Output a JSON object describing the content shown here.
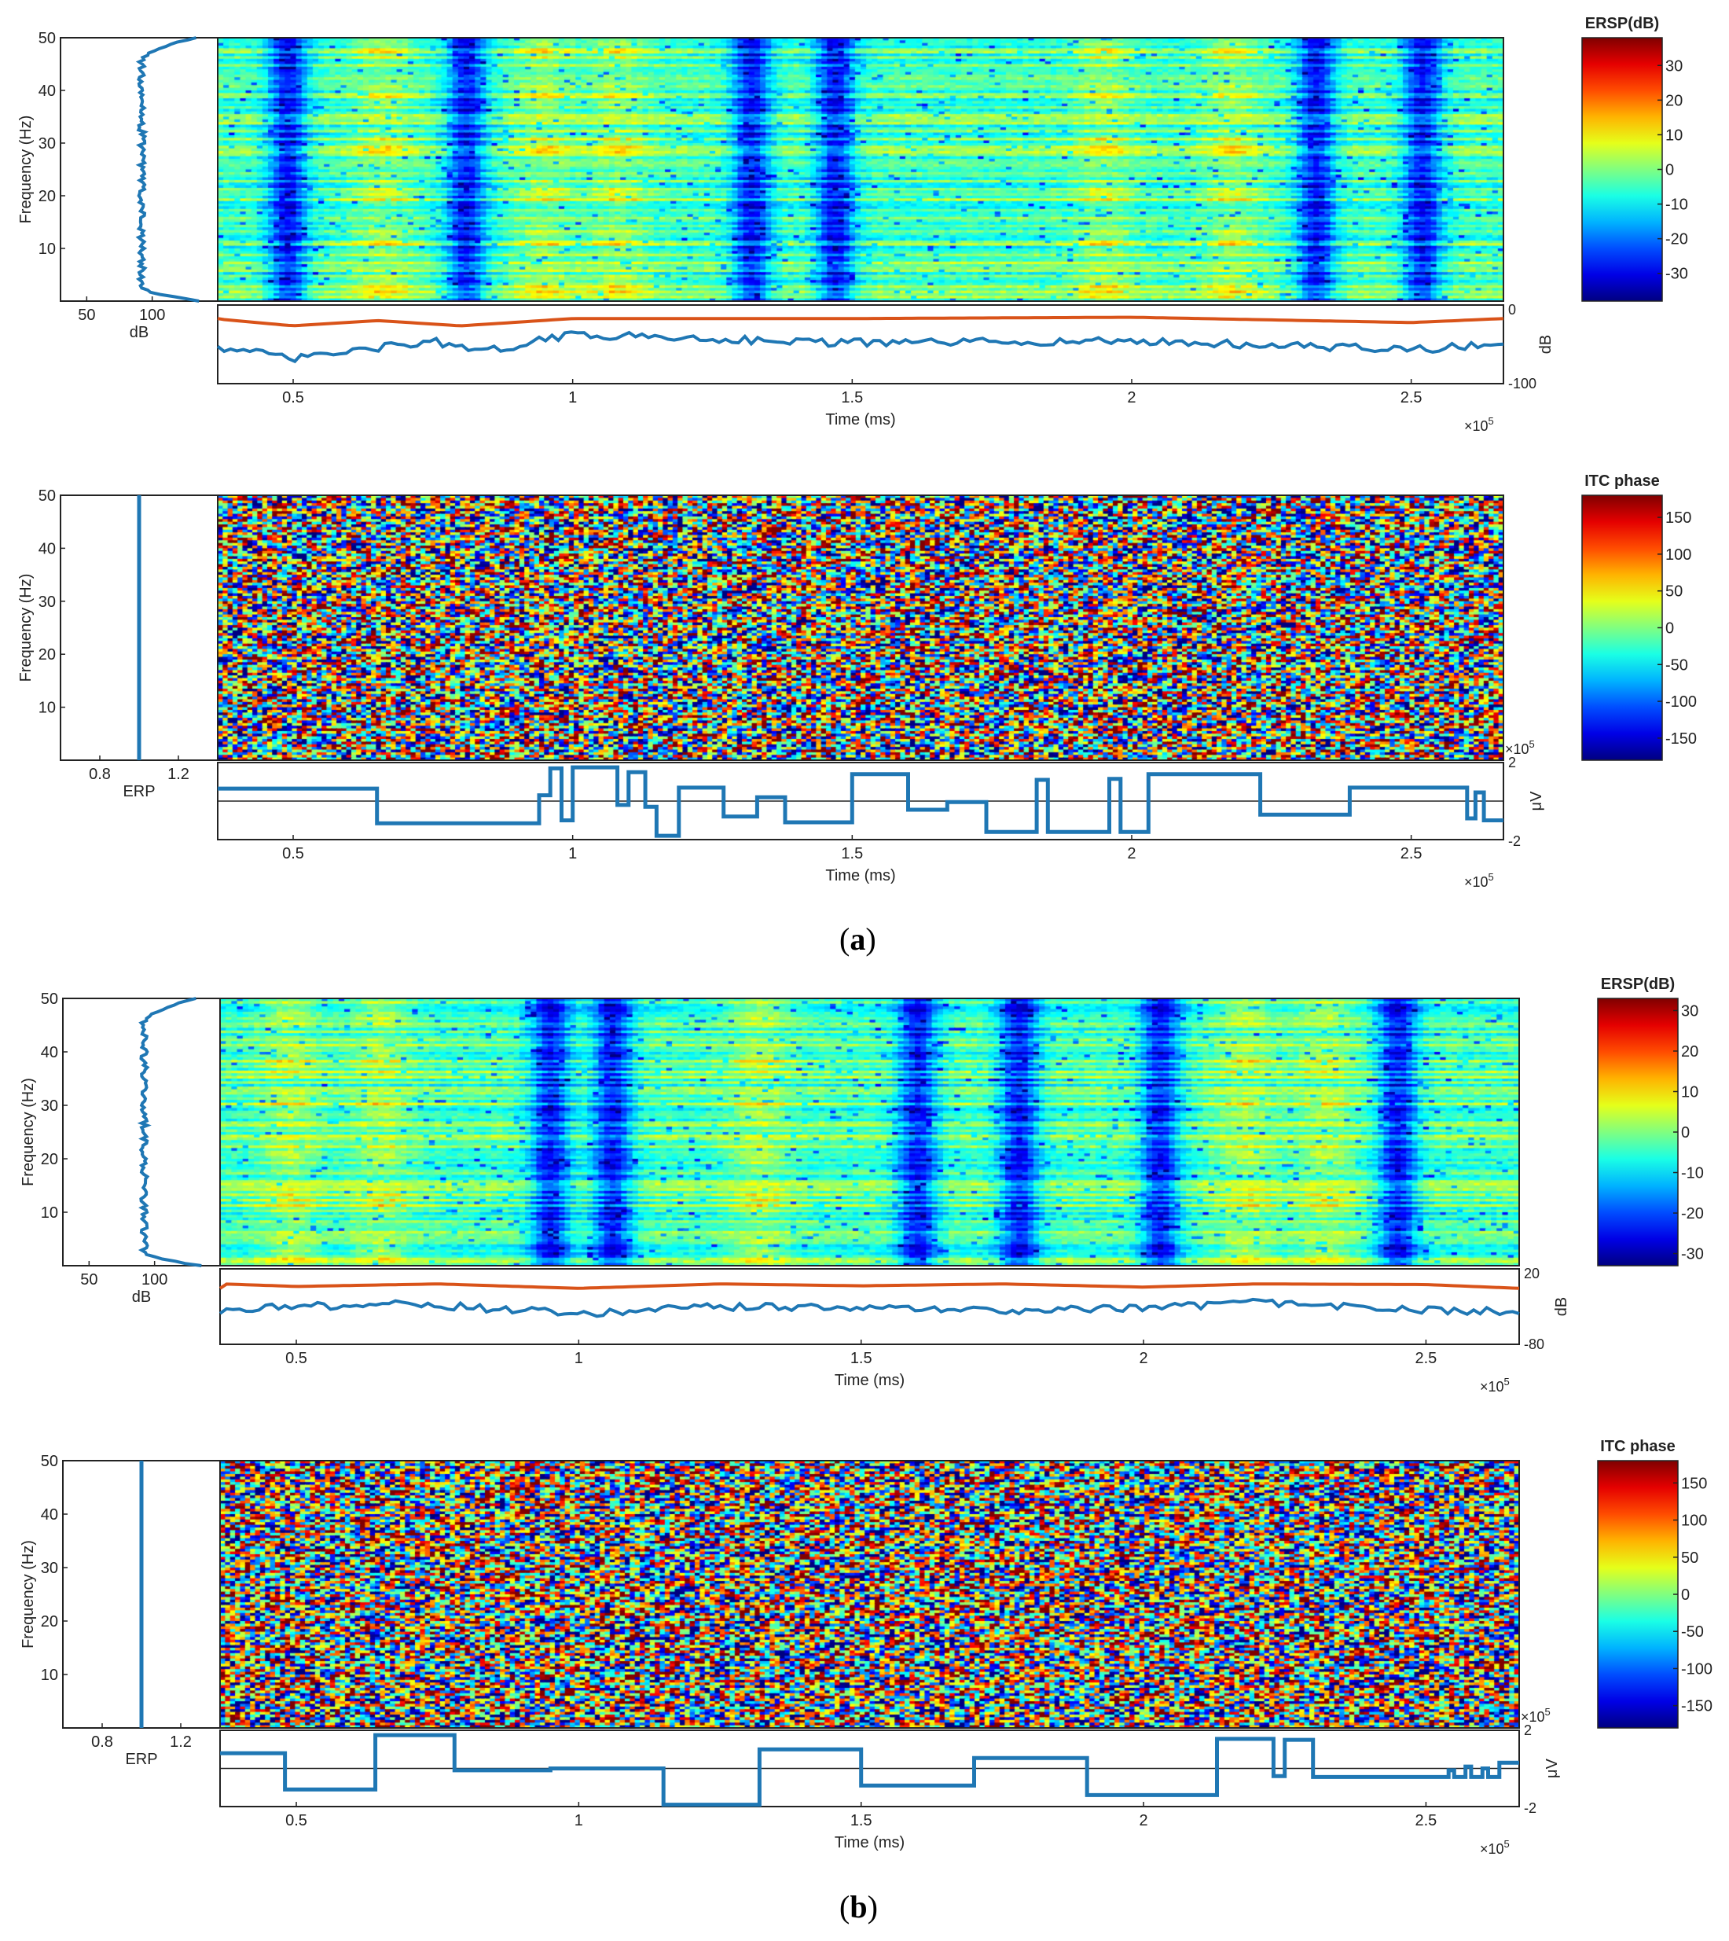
{
  "figure": {
    "caption_a": "a",
    "caption_b": "b"
  },
  "chart_data": [
    {
      "panel": "a",
      "type": "heatmap",
      "name": "ERSP",
      "ylabel": "Frequency (Hz)",
      "yticks": [
        10,
        20,
        30,
        40,
        50
      ],
      "ylim": [
        0,
        50
      ],
      "colorbar": {
        "title": "ERSP(dB)",
        "ticks": [
          30,
          20,
          10,
          0,
          -10,
          -20,
          -30
        ],
        "lim": [
          -38,
          38
        ]
      },
      "low_sweeps": [
        0.49,
        0.81,
        1.32,
        1.47,
        2.33,
        2.52
      ],
      "high_sweeps": [
        0.66,
        0.95,
        1.08,
        1.95,
        2.18
      ],
      "marginal": {
        "xlabel": "dB",
        "xticks": [
          50,
          100
        ],
        "xlim": [
          30,
          150
        ],
        "profile_value": 92
      },
      "trace": {
        "xlabel": "Time (ms)",
        "xticks": [
          0.5,
          1,
          1.5,
          2,
          2.5
        ],
        "xlim": [
          0.365,
          2.665
        ],
        "x_exponent": "×10",
        "ylabel": "dB",
        "yticks_labels": [
          "0",
          "-100"
        ],
        "ylim": [
          -100,
          0
        ],
        "red": [
          [
            0.37,
            -12
          ],
          [
            0.5,
            -22
          ],
          [
            0.65,
            -14
          ],
          [
            0.8,
            -22
          ],
          [
            1,
            -11
          ],
          [
            1.5,
            -11
          ],
          [
            2,
            -9
          ],
          [
            2.5,
            -17
          ],
          [
            2.665,
            -11
          ]
        ],
        "blue": [
          [
            0.37,
            -55
          ],
          [
            0.5,
            -72
          ],
          [
            0.75,
            -45
          ],
          [
            0.83,
            -63
          ],
          [
            1,
            -35
          ],
          [
            1.5,
            -48
          ],
          [
            2,
            -45
          ],
          [
            2.5,
            -58
          ],
          [
            2.665,
            -50
          ]
        ]
      }
    },
    {
      "panel": "a",
      "type": "heatmap",
      "name": "ITC phase",
      "ylabel": "Frequency (Hz)",
      "yticks": [
        10,
        20,
        30,
        40,
        50
      ],
      "ylim": [
        0,
        50
      ],
      "colorbar": {
        "title": "ITC phase",
        "ticks": [
          150,
          100,
          50,
          0,
          -50,
          -100,
          -150
        ],
        "lim": [
          -180,
          180
        ]
      },
      "marginal": {
        "xlabel": "ERP",
        "xticks": [
          0.8,
          1.2
        ],
        "xlim": [
          0.6,
          1.4
        ],
        "value": 1.0
      },
      "trace": {
        "xlabel": "Time (ms)",
        "xticks": [
          0.5,
          1,
          1.5,
          2,
          2.5
        ],
        "xlim": [
          0.365,
          2.665
        ],
        "x_exponent": "×10",
        "ylabel": "μV",
        "yticks_labels": [
          "2",
          "-2"
        ],
        "ylim": [
          -2,
          2
        ],
        "corner_exponent": "×10",
        "steps": [
          [
            0.365,
            0.65
          ],
          [
            0.65,
            -1.15
          ],
          [
            0.94,
            0.3
          ],
          [
            0.96,
            1.7
          ],
          [
            0.98,
            -1.0
          ],
          [
            1.0,
            1.75
          ],
          [
            1.08,
            -0.2
          ],
          [
            1.1,
            1.5
          ],
          [
            1.13,
            -0.3
          ],
          [
            1.15,
            -1.8
          ],
          [
            1.19,
            0.7
          ],
          [
            1.27,
            -0.8
          ],
          [
            1.33,
            0.2
          ],
          [
            1.38,
            -1.1
          ],
          [
            1.5,
            1.4
          ],
          [
            1.6,
            -0.45
          ],
          [
            1.67,
            -0.05
          ],
          [
            1.74,
            -1.6
          ],
          [
            1.82,
            -1.6
          ],
          [
            1.83,
            1.1
          ],
          [
            1.85,
            -1.6
          ],
          [
            1.96,
            1.15
          ],
          [
            1.98,
            -1.6
          ],
          [
            2.03,
            1.4
          ],
          [
            2.23,
            -0.7
          ],
          [
            2.39,
            0.7
          ],
          [
            2.6,
            -0.9
          ],
          [
            2.615,
            0.45
          ],
          [
            2.63,
            -1.0
          ],
          [
            2.665,
            -1.0
          ]
        ]
      }
    },
    {
      "panel": "b",
      "type": "heatmap",
      "name": "ERSP",
      "ylabel": "Frequency (Hz)",
      "yticks": [
        10,
        20,
        30,
        40,
        50
      ],
      "ylim": [
        0,
        50
      ],
      "colorbar": {
        "title": "ERSP(dB)",
        "ticks": [
          30,
          20,
          10,
          0,
          -10,
          -20,
          -30
        ],
        "lim": [
          -33,
          33
        ]
      },
      "low_sweeps": [
        0.95,
        1.06,
        1.6,
        1.78,
        2.03,
        2.45
      ],
      "high_sweeps": [
        0.49,
        0.65,
        1.32,
        2.18,
        2.32
      ],
      "marginal": {
        "xlabel": "dB",
        "xticks": [
          50,
          100
        ],
        "xlim": [
          30,
          150
        ],
        "profile_value": 92
      },
      "trace": {
        "xlabel": "Time (ms)",
        "xticks": [
          0.5,
          1,
          1.5,
          2,
          2.5
        ],
        "xlim": [
          0.365,
          2.665
        ],
        "x_exponent": "×10",
        "ylabel": "dB",
        "yticks_labels": [
          "20",
          "-80"
        ],
        "ylim": [
          -80,
          20
        ],
        "red": [
          [
            0.37,
            6
          ],
          [
            0.5,
            2
          ],
          [
            0.75,
            6
          ],
          [
            1,
            -1
          ],
          [
            1.25,
            6
          ],
          [
            1.5,
            3
          ],
          [
            1.75,
            6
          ],
          [
            2,
            1
          ],
          [
            2.2,
            6
          ],
          [
            2.5,
            5
          ],
          [
            2.665,
            -1
          ]
        ],
        "blue": [
          [
            0.37,
            -33
          ],
          [
            0.5,
            -30
          ],
          [
            0.7,
            -25
          ],
          [
            1,
            -42
          ],
          [
            1.25,
            -30
          ],
          [
            1.5,
            -32
          ],
          [
            1.75,
            -36
          ],
          [
            2,
            -32
          ],
          [
            2.2,
            -24
          ],
          [
            2.5,
            -36
          ],
          [
            2.665,
            -38
          ]
        ]
      }
    },
    {
      "panel": "b",
      "type": "heatmap",
      "name": "ITC phase",
      "ylabel": "Frequency (Hz)",
      "yticks": [
        10,
        20,
        30,
        40,
        50
      ],
      "ylim": [
        0,
        50
      ],
      "colorbar": {
        "title": "ITC phase",
        "ticks": [
          150,
          100,
          50,
          0,
          -50,
          -100,
          -150
        ],
        "lim": [
          -180,
          180
        ]
      },
      "marginal": {
        "xlabel": "ERP",
        "xticks": [
          0.8,
          1.2
        ],
        "xlim": [
          0.6,
          1.4
        ],
        "value": 1.0
      },
      "trace": {
        "xlabel": "Time (ms)",
        "xticks": [
          0.5,
          1,
          1.5,
          2,
          2.5
        ],
        "xlim": [
          0.365,
          2.665
        ],
        "x_exponent": "×10",
        "ylabel": "μV",
        "yticks_labels": [
          "2",
          "-2"
        ],
        "ylim": [
          -2,
          2
        ],
        "corner_exponent": "×10",
        "steps": [
          [
            0.365,
            0.8
          ],
          [
            0.48,
            -1.1
          ],
          [
            0.64,
            1.75
          ],
          [
            0.78,
            -0.1
          ],
          [
            0.95,
            0.0
          ],
          [
            1.15,
            -1.9
          ],
          [
            1.32,
            1.0
          ],
          [
            1.5,
            -0.9
          ],
          [
            1.7,
            0.55
          ],
          [
            1.9,
            -1.4
          ],
          [
            2.13,
            1.55
          ],
          [
            2.23,
            -0.4
          ],
          [
            2.25,
            1.5
          ],
          [
            2.3,
            -0.45
          ],
          [
            2.54,
            -0.1
          ],
          [
            2.55,
            -0.45
          ],
          [
            2.57,
            0.1
          ],
          [
            2.58,
            -0.45
          ],
          [
            2.6,
            0.0
          ],
          [
            2.61,
            -0.45
          ],
          [
            2.63,
            0.3
          ],
          [
            2.665,
            0.3
          ]
        ]
      }
    }
  ]
}
